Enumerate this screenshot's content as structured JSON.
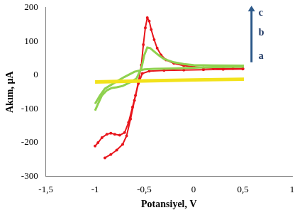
{
  "chart_data": {
    "type": "scatter",
    "x_label": "Potansiyel, V",
    "y_label": "Akım, µA",
    "xlim": [
      -1.5,
      1
    ],
    "xticks": [
      {
        "value": -1.5,
        "label": "-1,5"
      },
      -1,
      {
        "value": -0.5,
        "label": "-0,5"
      },
      0,
      {
        "value": 0.5,
        "label": "0,5"
      },
      1
    ],
    "ylim": [
      -300,
      200
    ],
    "yticks": [
      -300,
      -200,
      -100,
      0,
      100,
      200
    ],
    "grid": false,
    "series": [
      {
        "color": "#f2e21b",
        "marker": "none",
        "x": [
          -1,
          -0.5,
          0,
          0.5,
          0.5,
          0,
          -0.5,
          -1
        ],
        "values": [
          -22,
          -19,
          -16,
          -14,
          -10,
          -12,
          -15,
          -18
        ]
      },
      {
        "color": "#8fd14f",
        "marker": "none",
        "x": [
          -1,
          -0.97,
          -0.93,
          -0.88,
          -0.83,
          -0.78,
          -0.72,
          -0.65,
          -0.58,
          -0.53,
          -0.5,
          -0.47,
          -0.44,
          -0.4,
          -0.35,
          -0.3,
          -0.2,
          -0.1,
          0,
          0.2,
          0.5,
          0.5,
          0.2,
          0,
          -0.2,
          -0.4,
          -0.5,
          -0.6,
          -0.7,
          -0.8,
          -0.9,
          -0.95,
          -1
        ],
        "values": [
          -105,
          -85,
          -60,
          -45,
          -38,
          -36,
          -32,
          -22,
          -10,
          20,
          60,
          82,
          80,
          70,
          58,
          48,
          38,
          33,
          30,
          29,
          28,
          25,
          24,
          22,
          20,
          19,
          17,
          10,
          -5,
          -22,
          -40,
          -60,
          -85
        ]
      },
      {
        "color": "#e8141b",
        "marker": "circle",
        "x": [
          -1,
          -0.97,
          -0.93,
          -0.88,
          -0.84,
          -0.8,
          -0.75,
          -0.7,
          -0.66,
          -0.62,
          -0.59,
          -0.56,
          -0.53,
          -0.51,
          -0.49,
          -0.47,
          -0.45,
          -0.43,
          -0.4,
          -0.37,
          -0.33,
          -0.28,
          -0.2,
          -0.1,
          0,
          0.1,
          0.2,
          0.3,
          0.4,
          0.5,
          0.5,
          0.3,
          0.1,
          -0.1,
          -0.3,
          -0.45,
          -0.52,
          -0.56,
          -0.6,
          -0.64,
          -0.68,
          -0.72,
          -0.78,
          -0.84,
          -0.9
        ],
        "values": [
          -210,
          -200,
          -185,
          -175,
          -172,
          -175,
          -178,
          -170,
          -140,
          -95,
          -60,
          -20,
          30,
          90,
          140,
          170,
          160,
          135,
          105,
          80,
          60,
          45,
          35,
          28,
          25,
          22,
          21,
          20,
          20,
          20,
          18,
          17,
          16,
          15,
          14,
          12,
          5,
          -25,
          -75,
          -130,
          -180,
          -205,
          -222,
          -235,
          -245
        ]
      }
    ],
    "annotations": [
      {
        "text": "c",
        "x": 0.66,
        "y": 185
      },
      {
        "text": "b",
        "x": 0.66,
        "y": 125
      },
      {
        "text": "a",
        "x": 0.66,
        "y": 55
      }
    ]
  }
}
